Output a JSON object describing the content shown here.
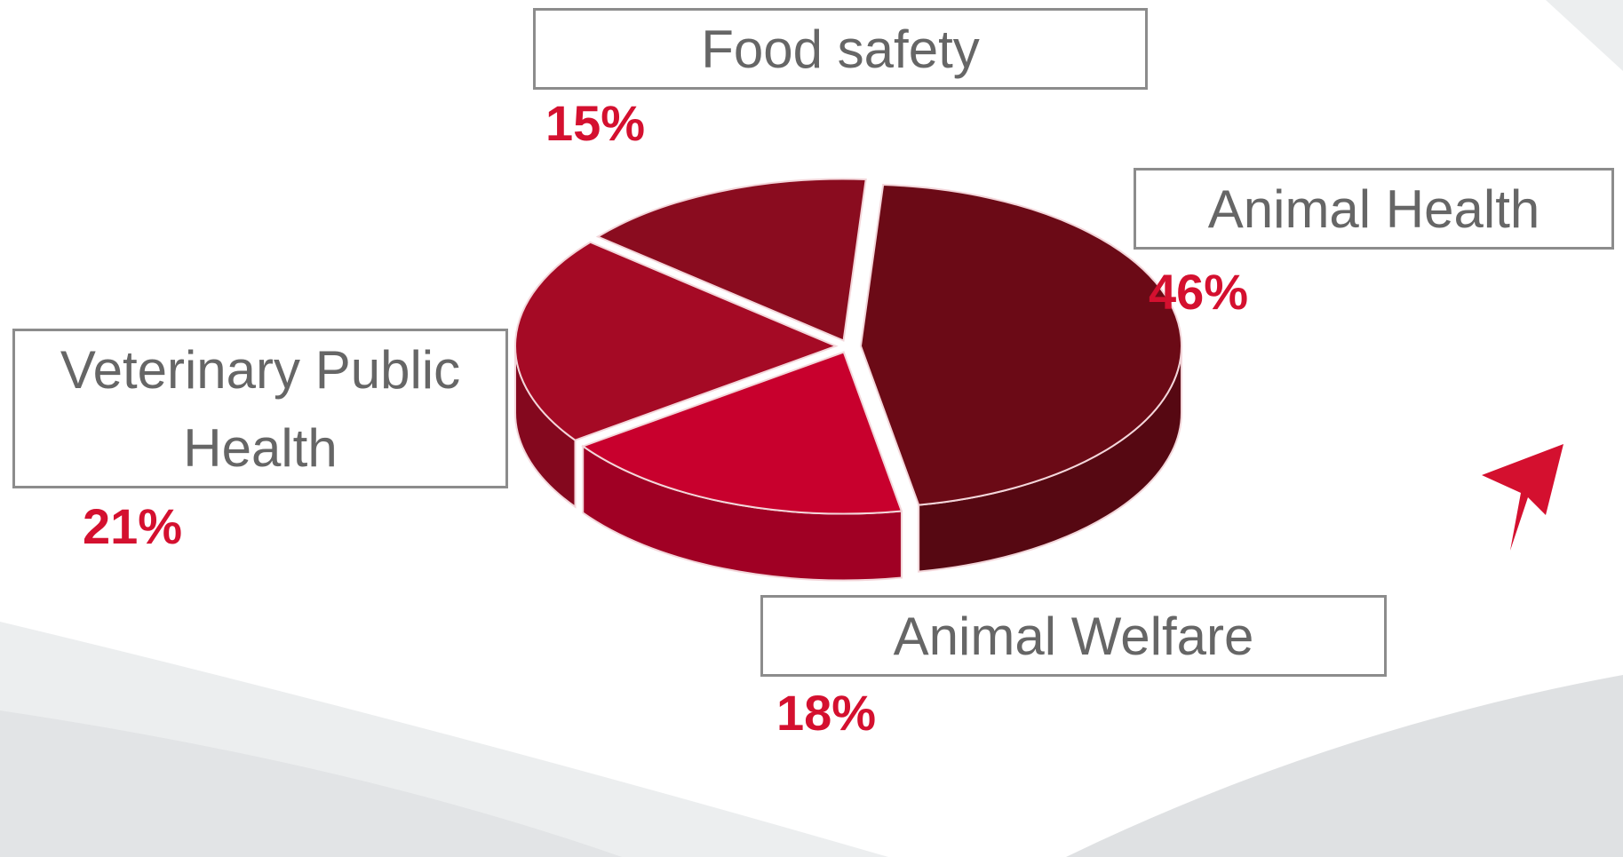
{
  "chart_data": {
    "type": "pie",
    "categories": [
      "Food safety",
      "Animal Health",
      "Animal Welfare",
      "Veterinary Public Health"
    ],
    "values": [
      15,
      46,
      18,
      21
    ],
    "value_labels": [
      "15%",
      "46%",
      "18%",
      "21%"
    ],
    "colors": [
      "#8a0c1f",
      "#6b0a16",
      "#c8002d",
      "#a50a25"
    ]
  }
}
